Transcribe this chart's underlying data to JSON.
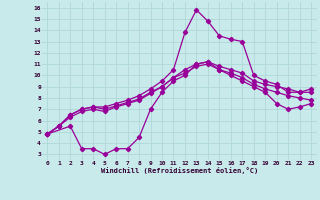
{
  "background_color": "#c8eaea",
  "grid_color": "#b0d8d8",
  "line_color": "#990099",
  "xlabel": "Windchill (Refroidissement éolien,°C)",
  "xlim": [
    -0.5,
    23.5
  ],
  "ylim": [
    2.5,
    16.5
  ],
  "xticks": [
    0,
    1,
    2,
    3,
    4,
    5,
    6,
    7,
    8,
    9,
    10,
    11,
    12,
    13,
    14,
    15,
    16,
    17,
    18,
    19,
    20,
    21,
    22,
    23
  ],
  "yticks": [
    3,
    4,
    5,
    6,
    7,
    8,
    9,
    10,
    11,
    12,
    13,
    14,
    15,
    16
  ],
  "line1_x": [
    0,
    1,
    2,
    3,
    4,
    5,
    6,
    7,
    8,
    9,
    10,
    11,
    12,
    13,
    14,
    15,
    16,
    17,
    18,
    19,
    20,
    21,
    22,
    23
  ],
  "line1_y": [
    4.8,
    5.5,
    6.5,
    7.0,
    7.2,
    7.2,
    7.5,
    7.8,
    8.2,
    8.8,
    9.5,
    10.5,
    13.8,
    15.8,
    14.8,
    13.5,
    13.2,
    13.0,
    10.0,
    9.5,
    9.2,
    8.5,
    8.5,
    8.8
  ],
  "line2_x": [
    0,
    1,
    2,
    3,
    4,
    5,
    6,
    7,
    8,
    9,
    10,
    11,
    12,
    13,
    14,
    15,
    16,
    17,
    18,
    19,
    20,
    21,
    22,
    23
  ],
  "line2_y": [
    4.8,
    5.5,
    6.5,
    7.0,
    7.2,
    7.0,
    7.3,
    7.6,
    7.9,
    8.5,
    9.0,
    9.8,
    10.5,
    11.0,
    11.2,
    10.8,
    10.5,
    10.2,
    9.5,
    9.2,
    9.0,
    8.8,
    8.5,
    8.5
  ],
  "line3_x": [
    0,
    1,
    2,
    3,
    4,
    5,
    6,
    7,
    8,
    9,
    10,
    11,
    12,
    13,
    14,
    15,
    16,
    17,
    18,
    19,
    20,
    21,
    22,
    23
  ],
  "line3_y": [
    4.8,
    5.5,
    6.3,
    6.8,
    7.0,
    6.8,
    7.2,
    7.5,
    7.8,
    8.4,
    9.0,
    9.8,
    10.2,
    10.8,
    11.0,
    10.5,
    10.2,
    9.8,
    9.2,
    8.8,
    8.5,
    8.2,
    8.0,
    7.8
  ],
  "line4_x": [
    0,
    2,
    3,
    4,
    5,
    6,
    7,
    8,
    9,
    10,
    11,
    12,
    13,
    14,
    15,
    16,
    17,
    18,
    19,
    20,
    21,
    22,
    23
  ],
  "line4_y": [
    4.8,
    5.5,
    3.5,
    3.5,
    3.0,
    3.5,
    3.5,
    4.5,
    7.0,
    8.5,
    9.5,
    10.0,
    11.0,
    11.2,
    10.5,
    10.0,
    9.5,
    9.0,
    8.5,
    7.5,
    7.0,
    7.2,
    7.5
  ]
}
